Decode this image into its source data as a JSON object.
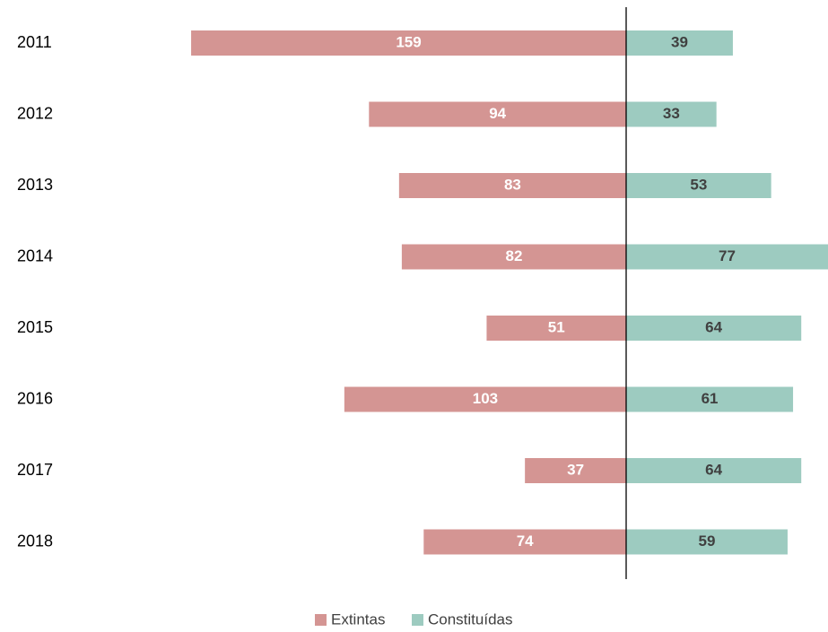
{
  "chart_data": {
    "type": "bar",
    "orientation": "horizontal-diverging",
    "categories": [
      "2011",
      "2012",
      "2013",
      "2014",
      "2015",
      "2016",
      "2017",
      "2018"
    ],
    "series": [
      {
        "name": "Extintas",
        "values": [
          159,
          94,
          83,
          82,
          51,
          103,
          37,
          74
        ],
        "color": "#d49593",
        "label_color": "#ffffff",
        "direction": "left"
      },
      {
        "name": "Constituídas",
        "values": [
          39,
          33,
          53,
          77,
          64,
          61,
          64,
          59
        ],
        "color": "#9dcbc0",
        "label_color": "#404040",
        "direction": "right"
      }
    ],
    "title": "",
    "xlabel": "",
    "ylabel": "",
    "grid": false,
    "legend_position": "bottom-center",
    "axis_color": "#000000"
  }
}
